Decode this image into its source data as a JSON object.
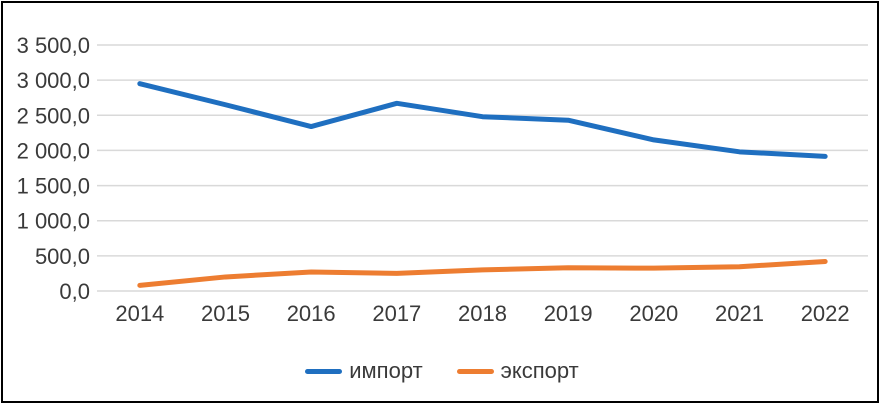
{
  "chart_data": {
    "type": "line",
    "categories": [
      "2014",
      "2015",
      "2016",
      "2017",
      "2018",
      "2019",
      "2020",
      "2021",
      "2022"
    ],
    "series": [
      {
        "name": "импорт",
        "color": "#1f6fc0",
        "values": [
          2950,
          2650,
          2340,
          2670,
          2480,
          2430,
          2150,
          1980,
          1915
        ]
      },
      {
        "name": "экспорт",
        "color": "#ed7d31",
        "values": [
          80,
          200,
          270,
          250,
          300,
          330,
          325,
          345,
          420
        ]
      }
    ],
    "xlabel": "",
    "ylabel": "",
    "ylim": [
      0,
      3500
    ],
    "yticks": [
      {
        "v": 0,
        "label": "0,0"
      },
      {
        "v": 500,
        "label": "500,0"
      },
      {
        "v": 1000,
        "label": "1 000,0"
      },
      {
        "v": 1500,
        "label": "1 500,0"
      },
      {
        "v": 2000,
        "label": "2 000,0"
      },
      {
        "v": 2500,
        "label": "2 500,0"
      },
      {
        "v": 3000,
        "label": "3 000,0"
      },
      {
        "v": 3500,
        "label": "3 500,0"
      }
    ],
    "grid": "horizontal",
    "legend_position": "bottom"
  },
  "styles": {
    "background": "#ffffff",
    "border_color": "#000000",
    "grid_color": "#d9d9d9",
    "text_color": "#3a3a3a",
    "line_width": 5
  }
}
